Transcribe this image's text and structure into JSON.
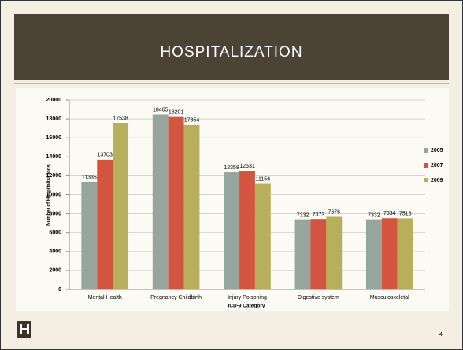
{
  "chart_data": {
    "type": "bar",
    "title": "HOSPITALIZATION",
    "y_label": "Number of Hospitalizations",
    "x_label": "ICD-9  Category",
    "categories": [
      "Mental Health",
      "Pregnancy Childbirth",
      "Injury Poisoning",
      "Digestive system",
      "Musculoskeletal"
    ],
    "series": [
      {
        "name": "2005",
        "color": "#96a59d",
        "values": [
          11335,
          18465,
          12358,
          7332,
          7332
        ]
      },
      {
        "name": "2007",
        "color": "#d4553f",
        "values": [
          13703,
          18201,
          12531,
          7373,
          7534
        ]
      },
      {
        "name": "2009",
        "color": "#b8af5c",
        "values": [
          17538,
          17354,
          11156,
          7676,
          7516
        ]
      }
    ],
    "ylim": [
      0,
      20000
    ],
    "yticks": [
      0,
      2000,
      4000,
      6000,
      8000,
      10000,
      12000,
      14000,
      16000,
      18000,
      20000
    ],
    "grid": true,
    "legend": "right"
  },
  "page_number": "4"
}
